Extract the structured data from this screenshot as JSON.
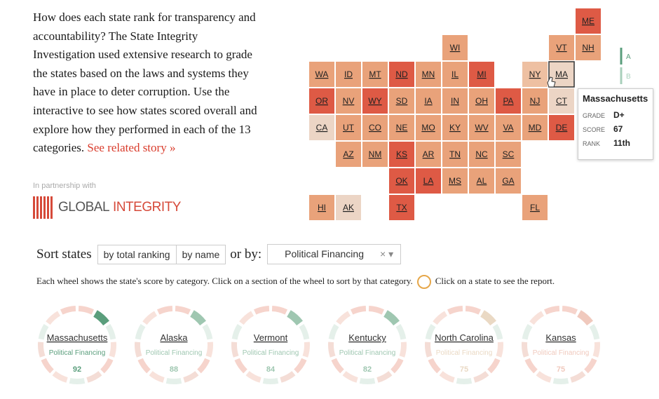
{
  "intro": {
    "lines": [
      "How does each state rank for transparency and",
      "accountability? The State Integrity",
      "Investigation used extensive research to grade",
      "the states based on the laws and systems they",
      "have in place to deter corruption. Use the",
      "interactive to see how states scored overall and",
      "explore how they performed in each of the 13",
      "categories."
    ],
    "link": "See related story »"
  },
  "partnership": {
    "label": "In partnership with",
    "logo_text_1": "GLOBAL",
    "logo_text_2": "INTEGRITY"
  },
  "map": {
    "tiles": [
      {
        "label": "ME",
        "color": "#de5a45"
      },
      {
        "label": "WI",
        "color": "#e9a27a"
      },
      {
        "label": "VT",
        "color": "#e9a27a"
      },
      {
        "label": "NH",
        "color": "#e9a27a"
      },
      {
        "label": "WA",
        "color": "#e9a27a"
      },
      {
        "label": "ID",
        "color": "#e9a27a"
      },
      {
        "label": "MT",
        "color": "#e9a27a"
      },
      {
        "label": "ND",
        "color": "#de5a45"
      },
      {
        "label": "MN",
        "color": "#e9a27a"
      },
      {
        "label": "IL",
        "color": "#e9a27a"
      },
      {
        "label": "MI",
        "color": "#de5a45"
      },
      {
        "label": "NY",
        "color": "#eec0a2"
      },
      {
        "label": "MA",
        "color": "#ecd5c5"
      },
      {
        "label": "OR",
        "color": "#de5a45"
      },
      {
        "label": "NV",
        "color": "#e9a27a"
      },
      {
        "label": "WY",
        "color": "#de5a45"
      },
      {
        "label": "SD",
        "color": "#e9a27a"
      },
      {
        "label": "IA",
        "color": "#e9a27a"
      },
      {
        "label": "IN",
        "color": "#e9a27a"
      },
      {
        "label": "OH",
        "color": "#e9a27a"
      },
      {
        "label": "PA",
        "color": "#de5a45"
      },
      {
        "label": "NJ",
        "color": "#e9a27a"
      },
      {
        "label": "CT",
        "color": "#ecd5c5"
      },
      {
        "label": "CA",
        "color": "#ecd5c5"
      },
      {
        "label": "UT",
        "color": "#e9a27a"
      },
      {
        "label": "CO",
        "color": "#e9a27a"
      },
      {
        "label": "NE",
        "color": "#e9a27a"
      },
      {
        "label": "MO",
        "color": "#e9a27a"
      },
      {
        "label": "KY",
        "color": "#e9a27a"
      },
      {
        "label": "WV",
        "color": "#e9a27a"
      },
      {
        "label": "VA",
        "color": "#e9a27a"
      },
      {
        "label": "MD",
        "color": "#e9a27a"
      },
      {
        "label": "DE",
        "color": "#de5a45"
      },
      {
        "label": "AZ",
        "color": "#e9a27a"
      },
      {
        "label": "NM",
        "color": "#e9a27a"
      },
      {
        "label": "KS",
        "color": "#de5a45"
      },
      {
        "label": "AR",
        "color": "#e9a27a"
      },
      {
        "label": "TN",
        "color": "#e9a27a"
      },
      {
        "label": "NC",
        "color": "#e9a27a"
      },
      {
        "label": "SC",
        "color": "#e9a27a"
      },
      {
        "label": "OK",
        "color": "#de5a45"
      },
      {
        "label": "LA",
        "color": "#de5a45"
      },
      {
        "label": "MS",
        "color": "#e9a27a"
      },
      {
        "label": "AL",
        "color": "#e9a27a"
      },
      {
        "label": "GA",
        "color": "#e9a27a"
      },
      {
        "label": "HI",
        "color": "#e9a27a"
      },
      {
        "label": "AK",
        "color": "#ecd5c5"
      },
      {
        "label": "TX",
        "color": "#de5a45"
      },
      {
        "label": "FL",
        "color": "#e9a27a"
      }
    ],
    "legend": [
      "A",
      "B"
    ],
    "tooltip": {
      "state": "Massachusetts",
      "grade_label": "GRADE",
      "grade": "D+",
      "score_label": "SCORE",
      "score": 67,
      "rank_label": "RANK",
      "rank": "11th"
    }
  },
  "sort": {
    "label": "Sort states",
    "buttons": [
      "by total ranking",
      "by name"
    ],
    "or_by": "or by:",
    "selected": "Political Financing",
    "clear": "×",
    "caret": "▾"
  },
  "instructions": {
    "text": "Each wheel shows the state's score by category. Click on a section of the wheel to sort by that category.",
    "hint": "Click on a state to see the report."
  },
  "wheels": [
    {
      "name": "Massachusetts",
      "category": "Political Financing",
      "score": 92,
      "color": "#5a9e7c"
    },
    {
      "name": "Alaska",
      "category": "Political Financing",
      "score": 88,
      "color": "#9fc7b1"
    },
    {
      "name": "Vermont",
      "category": "Political Financing",
      "score": 84,
      "color": "#9fc7b1"
    },
    {
      "name": "Kentucky",
      "category": "Political Financing",
      "score": 82,
      "color": "#9fc7b1"
    },
    {
      "name": "North Carolina",
      "category": "Political Financing",
      "score": 75,
      "color": "#ead9c4"
    },
    {
      "name": "Kansas",
      "category": "Political Financing",
      "score": 75,
      "color": "#f0c9bd"
    }
  ]
}
